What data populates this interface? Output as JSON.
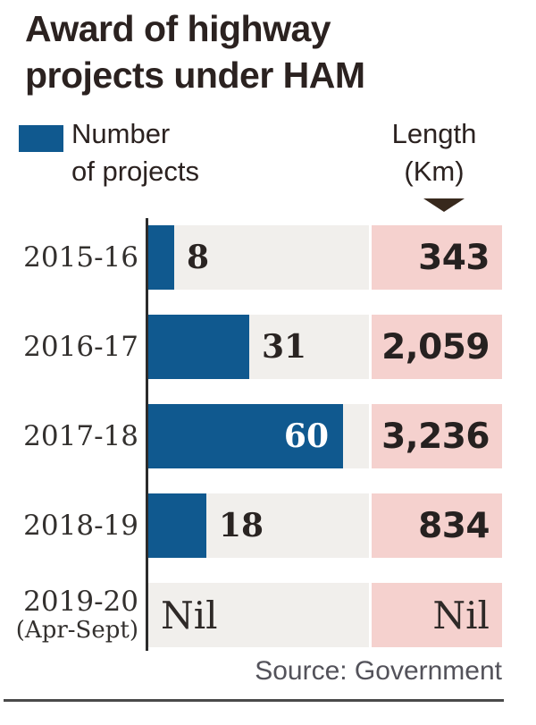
{
  "title": {
    "line1": "Award of highway",
    "line2": "projects under HAM"
  },
  "legend": {
    "projects_line1": "Number",
    "projects_line2": "of projects",
    "length_line1": "Length",
    "length_line2": "(Km)"
  },
  "rows": [
    {
      "year": "2015-16",
      "year_sub": "",
      "projects": "8",
      "length": "343"
    },
    {
      "year": "2016-17",
      "year_sub": "",
      "projects": "31",
      "length": "2,059"
    },
    {
      "year": "2017-18",
      "year_sub": "",
      "projects": "60",
      "length": "3,236"
    },
    {
      "year": "2018-19",
      "year_sub": "",
      "projects": "18",
      "length": "834"
    },
    {
      "year": "2019-20",
      "year_sub": "(Apr-Sept)",
      "projects": "Nil",
      "length": "Nil"
    }
  ],
  "source": "Source: Government",
  "colors": {
    "bar_blue": "#10598f",
    "pink_band": "#f5d1ce",
    "gray_band": "#f1efec",
    "dark_text": "#2b2220",
    "triangle": "#38291d",
    "source_text": "#53525a",
    "rule": "#4a4a4a"
  },
  "chart_data": {
    "type": "bar",
    "title": "Award of highway projects under HAM",
    "categories": [
      "2015-16",
      "2016-17",
      "2017-18",
      "2018-19",
      "2019-20 (Apr-Sept)"
    ],
    "series": [
      {
        "name": "Number of projects",
        "values": [
          8,
          31,
          60,
          18,
          null
        ]
      },
      {
        "name": "Length (Km)",
        "values": [
          343,
          2059,
          3236,
          834,
          null
        ]
      }
    ],
    "nil_label": "Nil",
    "legend_position": "top",
    "orientation": "horizontal",
    "source": "Source: Government"
  }
}
